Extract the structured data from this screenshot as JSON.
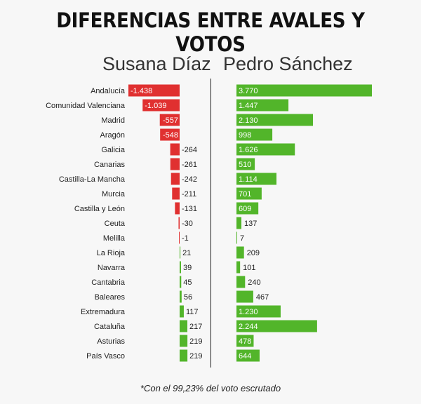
{
  "title": "DIFERENCIAS ENTRE AVALES Y VOTOS",
  "footnote": "*Con el 99,23% del  voto  escrutado",
  "colors": {
    "negative": "#e03030",
    "positive": "#52b52a",
    "text": "#222222"
  },
  "chart_data": {
    "type": "bar",
    "categories": [
      "Andalucía",
      "Comunidad Valenciana",
      "Madrid",
      "Aragón",
      "Galicia",
      "Canarias",
      "Castilla-La Mancha",
      "Murcia",
      "Castilla y León",
      "Ceuta",
      "Melilla",
      "La Rioja",
      "Navarra",
      "Cantabria",
      "Baleares",
      "Extremadura",
      "Cataluña",
      "Asturias",
      "País Vasco"
    ],
    "series": [
      {
        "name": "Susana Díaz",
        "values": [
          -1438,
          -1039,
          -557,
          -548,
          -264,
          -261,
          -242,
          -211,
          -131,
          -30,
          -1,
          21,
          39,
          45,
          56,
          117,
          217,
          219,
          219
        ],
        "labels": [
          "-1.438",
          "-1.039",
          "-557",
          "-548",
          "-264",
          "-261",
          "-242",
          "-211",
          "-131",
          "-30",
          "-1",
          "21",
          "39",
          "45",
          "56",
          "117",
          "217",
          "219",
          "219"
        ]
      },
      {
        "name": "Pedro Sánchez",
        "values": [
          3770,
          1447,
          2130,
          998,
          1626,
          510,
          1114,
          701,
          609,
          137,
          7,
          209,
          101,
          240,
          467,
          1230,
          2244,
          478,
          644
        ],
        "labels": [
          "3.770",
          "1.447",
          "2.130",
          "998",
          "1.626",
          "510",
          "1.114",
          "701",
          "609",
          "137",
          "7",
          "209",
          "101",
          "240",
          "467",
          "1.230",
          "2.244",
          "478",
          "644"
        ]
      }
    ]
  }
}
